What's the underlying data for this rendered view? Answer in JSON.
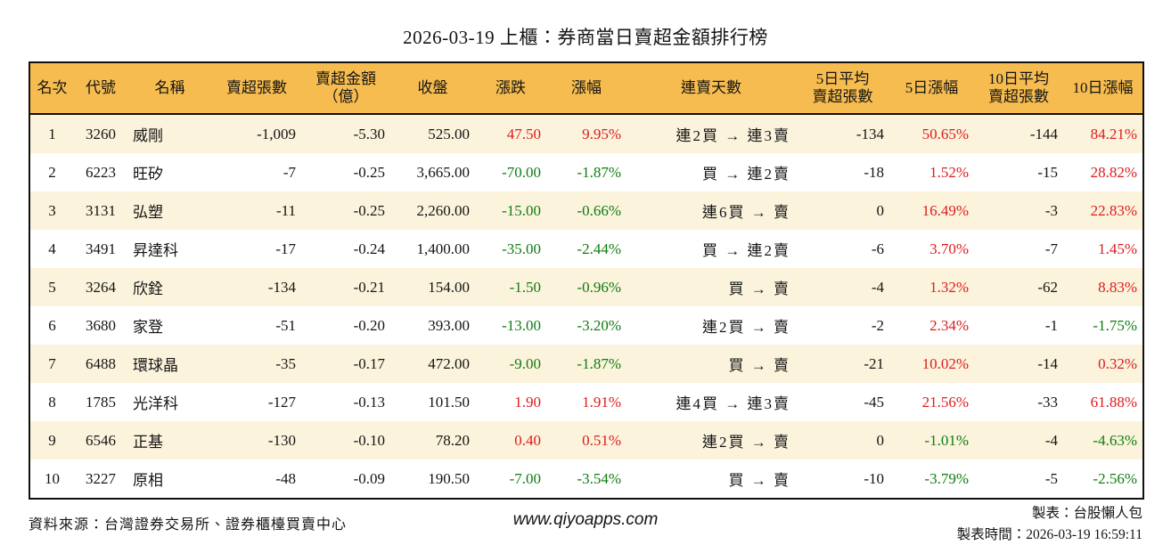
{
  "title": "2026-03-19 上櫃：券商當日賣超金額排行榜",
  "colors": {
    "up_red": "#dd1c1c",
    "down_green": "#0e7d12",
    "header_bg": "#f6bc4f",
    "stripe_bg": "#fcf3dc",
    "border": "#111111"
  },
  "table": {
    "columns": [
      {
        "key": "rank",
        "label": "名次",
        "align": "al-c"
      },
      {
        "key": "code",
        "label": "代號",
        "align": "al-c"
      },
      {
        "key": "name",
        "label": "名稱",
        "align": "al-l"
      },
      {
        "key": "net-sell-volume",
        "label": "賣超張數",
        "align": "al-r"
      },
      {
        "key": "net-sell-amount",
        "label": "賣超金額\n（億）",
        "align": "al-r"
      },
      {
        "key": "close",
        "label": "收盤",
        "align": "al-r"
      },
      {
        "key": "change",
        "label": "漲跌",
        "align": "al-r"
      },
      {
        "key": "change-pct",
        "label": "漲幅",
        "align": "al-r"
      },
      {
        "key": "sell-streak",
        "label": "連賣天數",
        "align": "streak"
      },
      {
        "key": "avg5-net-sell",
        "label": "5日平均\n賣超張數",
        "align": "al-r"
      },
      {
        "key": "chg5-pct",
        "label": "5日漲幅",
        "align": "al-r"
      },
      {
        "key": "avg10-net-sell",
        "label": "10日平均\n賣超張數",
        "align": "al-r"
      },
      {
        "key": "chg10-pct",
        "label": "10日漲幅",
        "align": "al-r"
      }
    ],
    "rows": [
      {
        "rank": "1",
        "code": "3260",
        "name": "威剛",
        "net_sell_volume": "-1,009",
        "net_sell_amount": "-5.30",
        "close": "525.00",
        "change": "47.50",
        "change_dir": "up",
        "change_pct": "9.95%",
        "change_pct_dir": "up",
        "streak": "連2買 → 連3賣",
        "avg5_volume": "-134",
        "chg5_pct": "50.65%",
        "chg5_dir": "up",
        "avg10_volume": "-144",
        "chg10_pct": "84.21%",
        "chg10_dir": "up"
      },
      {
        "rank": "2",
        "code": "6223",
        "name": "旺矽",
        "net_sell_volume": "-7",
        "net_sell_amount": "-0.25",
        "close": "3,665.00",
        "change": "-70.00",
        "change_dir": "down",
        "change_pct": "-1.87%",
        "change_pct_dir": "down",
        "streak": "買 → 連2賣",
        "avg5_volume": "-18",
        "chg5_pct": "1.52%",
        "chg5_dir": "up",
        "avg10_volume": "-15",
        "chg10_pct": "28.82%",
        "chg10_dir": "up"
      },
      {
        "rank": "3",
        "code": "3131",
        "name": "弘塑",
        "net_sell_volume": "-11",
        "net_sell_amount": "-0.25",
        "close": "2,260.00",
        "change": "-15.00",
        "change_dir": "down",
        "change_pct": "-0.66%",
        "change_pct_dir": "down",
        "streak": "連6買 → 賣",
        "avg5_volume": "0",
        "chg5_pct": "16.49%",
        "chg5_dir": "up",
        "avg10_volume": "-3",
        "chg10_pct": "22.83%",
        "chg10_dir": "up"
      },
      {
        "rank": "4",
        "code": "3491",
        "name": "昇達科",
        "net_sell_volume": "-17",
        "net_sell_amount": "-0.24",
        "close": "1,400.00",
        "change": "-35.00",
        "change_dir": "down",
        "change_pct": "-2.44%",
        "change_pct_dir": "down",
        "streak": "買 → 連2賣",
        "avg5_volume": "-6",
        "chg5_pct": "3.70%",
        "chg5_dir": "up",
        "avg10_volume": "-7",
        "chg10_pct": "1.45%",
        "chg10_dir": "up"
      },
      {
        "rank": "5",
        "code": "3264",
        "name": "欣銓",
        "net_sell_volume": "-134",
        "net_sell_amount": "-0.21",
        "close": "154.00",
        "change": "-1.50",
        "change_dir": "down",
        "change_pct": "-0.96%",
        "change_pct_dir": "down",
        "streak": "買 → 賣",
        "avg5_volume": "-4",
        "chg5_pct": "1.32%",
        "chg5_dir": "up",
        "avg10_volume": "-62",
        "chg10_pct": "8.83%",
        "chg10_dir": "up"
      },
      {
        "rank": "6",
        "code": "3680",
        "name": "家登",
        "net_sell_volume": "-51",
        "net_sell_amount": "-0.20",
        "close": "393.00",
        "change": "-13.00",
        "change_dir": "down",
        "change_pct": "-3.20%",
        "change_pct_dir": "down",
        "streak": "連2買 → 賣",
        "avg5_volume": "-2",
        "chg5_pct": "2.34%",
        "chg5_dir": "up",
        "avg10_volume": "-1",
        "chg10_pct": "-1.75%",
        "chg10_dir": "down"
      },
      {
        "rank": "7",
        "code": "6488",
        "name": "環球晶",
        "net_sell_volume": "-35",
        "net_sell_amount": "-0.17",
        "close": "472.00",
        "change": "-9.00",
        "change_dir": "down",
        "change_pct": "-1.87%",
        "change_pct_dir": "down",
        "streak": "買 → 賣",
        "avg5_volume": "-21",
        "chg5_pct": "10.02%",
        "chg5_dir": "up",
        "avg10_volume": "-14",
        "chg10_pct": "0.32%",
        "chg10_dir": "up"
      },
      {
        "rank": "8",
        "code": "1785",
        "name": "光洋科",
        "net_sell_volume": "-127",
        "net_sell_amount": "-0.13",
        "close": "101.50",
        "change": "1.90",
        "change_dir": "up",
        "change_pct": "1.91%",
        "change_pct_dir": "up",
        "streak": "連4買 → 連3賣",
        "avg5_volume": "-45",
        "chg5_pct": "21.56%",
        "chg5_dir": "up",
        "avg10_volume": "-33",
        "chg10_pct": "61.88%",
        "chg10_dir": "up"
      },
      {
        "rank": "9",
        "code": "6546",
        "name": "正基",
        "net_sell_volume": "-130",
        "net_sell_amount": "-0.10",
        "close": "78.20",
        "change": "0.40",
        "change_dir": "up",
        "change_pct": "0.51%",
        "change_pct_dir": "up",
        "streak": "連2買 → 賣",
        "avg5_volume": "0",
        "chg5_pct": "-1.01%",
        "chg5_dir": "down",
        "avg10_volume": "-4",
        "chg10_pct": "-4.63%",
        "chg10_dir": "down"
      },
      {
        "rank": "10",
        "code": "3227",
        "name": "原相",
        "net_sell_volume": "-48",
        "net_sell_amount": "-0.09",
        "close": "190.50",
        "change": "-7.00",
        "change_dir": "down",
        "change_pct": "-3.54%",
        "change_pct_dir": "down",
        "streak": "買 → 賣",
        "avg5_volume": "-10",
        "chg5_pct": "-3.79%",
        "chg5_dir": "down",
        "avg10_volume": "-5",
        "chg10_pct": "-2.56%",
        "chg10_dir": "down"
      }
    ]
  },
  "footer": {
    "source": "資料來源：台灣證券交易所、證券櫃檯買賣中心",
    "website": "www.qiyoapps.com",
    "maker": "製表：台股懶人包",
    "timestamp": "製表時間：2026-03-19 16:59:11"
  }
}
